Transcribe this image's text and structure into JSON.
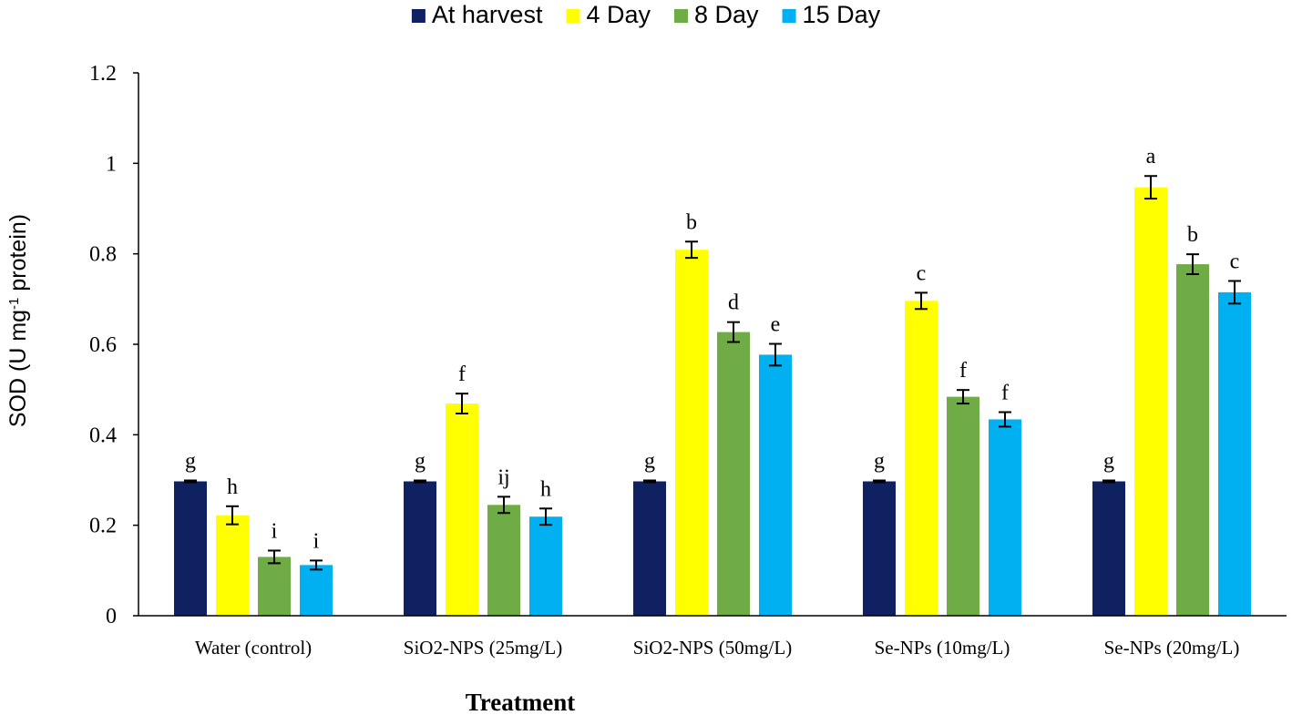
{
  "chart_data": {
    "type": "bar",
    "title": "",
    "xlabel": "Treatment",
    "ylabel": {
      "prefix": "SOD (U mg",
      "superscript": "-1",
      "suffix": " protein)"
    },
    "ylim": [
      0,
      1.2
    ],
    "yticks": [
      0,
      0.2,
      0.4,
      0.6,
      0.8,
      1,
      1.2
    ],
    "ytick_labels": [
      "0",
      "0.2",
      "0.4",
      "0.6",
      "0.8",
      "1",
      "1.2"
    ],
    "grid": false,
    "legend_position": "top-center",
    "categories": [
      "Water (control)",
      "SiO2-NPS (25mg/L)",
      "SiO2-NPS (50mg/L)",
      "Se-NPs (10mg/L)",
      "Se-NPs (20mg/L)"
    ],
    "series": [
      {
        "name": "At harvest",
        "color": "#0f2160",
        "values": [
          0.297,
          0.297,
          0.297,
          0.297,
          0.297
        ],
        "errors": [
          0.002,
          0.002,
          0.002,
          0.002,
          0.002
        ],
        "labels": [
          "g",
          "g",
          "g",
          "g",
          "g"
        ]
      },
      {
        "name": "4 Day",
        "color": "#ffff00",
        "values": [
          0.222,
          0.469,
          0.809,
          0.696,
          0.947
        ],
        "errors": [
          0.02,
          0.022,
          0.018,
          0.018,
          0.025
        ],
        "labels": [
          "h",
          "f",
          "b",
          "c",
          "a"
        ]
      },
      {
        "name": "8 Day",
        "color": "#6fac46",
        "values": [
          0.13,
          0.245,
          0.627,
          0.484,
          0.777
        ],
        "errors": [
          0.014,
          0.018,
          0.022,
          0.015,
          0.022
        ],
        "labels": [
          "i",
          "ij",
          "d",
          "f",
          "b"
        ]
      },
      {
        "name": "15 Day",
        "color": "#00b0f0",
        "values": [
          0.112,
          0.219,
          0.577,
          0.434,
          0.715
        ],
        "errors": [
          0.01,
          0.018,
          0.024,
          0.016,
          0.025
        ],
        "labels": [
          "i",
          "h",
          "e",
          "f",
          "c"
        ]
      }
    ]
  }
}
